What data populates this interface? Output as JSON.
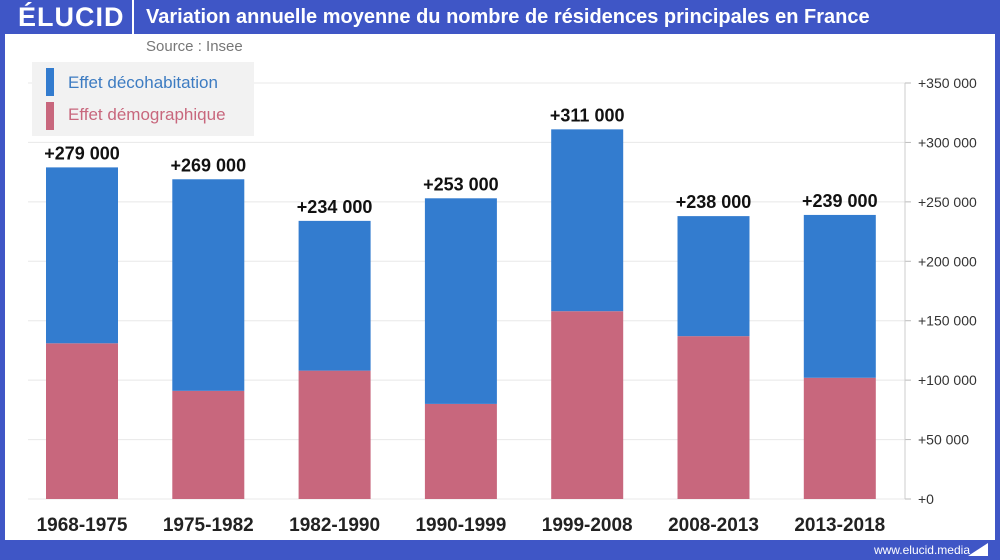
{
  "header": {
    "logo": "ÉLUCID",
    "title": "Variation annuelle moyenne du nombre de résidences principales en France"
  },
  "source": "Source : Insee",
  "footer": "www.elucid.media",
  "colors": {
    "frame": "#3f56c6",
    "decohabitation": "#337ccf",
    "demographique": "#c8677d"
  },
  "chart_data": {
    "type": "bar",
    "stacked": true,
    "title": "Variation annuelle moyenne du nombre de résidences principales en France",
    "categories": [
      "1968-1975",
      "1975-1982",
      "1982-1990",
      "1990-1999",
      "1999-2008",
      "2008-2013",
      "2013-2018"
    ],
    "series": [
      {
        "name": "Effet démographique",
        "color": "#c8677d",
        "values": [
          131000,
          91000,
          108000,
          80000,
          158000,
          137000,
          102000
        ]
      },
      {
        "name": "Effet décohabitation",
        "color": "#337ccf",
        "values": [
          148000,
          178000,
          126000,
          173000,
          153000,
          101000,
          137000
        ]
      }
    ],
    "totals": [
      279000,
      269000,
      234000,
      253000,
      311000,
      238000,
      239000
    ],
    "total_labels": [
      "+279 000",
      "+269 000",
      "+234 000",
      "+253 000",
      "+311 000",
      "+238 000",
      "+239 000"
    ],
    "legend": [
      "Effet décohabitation",
      "Effet démographique"
    ],
    "legend_position": "top-left",
    "ylim": [
      0,
      350000
    ],
    "yticks": [
      0,
      50000,
      100000,
      150000,
      200000,
      250000,
      300000,
      350000
    ],
    "ytick_labels": [
      "+0",
      "+50 000",
      "+100 000",
      "+150 000",
      "+200 000",
      "+250 000",
      "+300 000",
      "+350 000"
    ],
    "y_axis_side": "right",
    "grid": true
  }
}
